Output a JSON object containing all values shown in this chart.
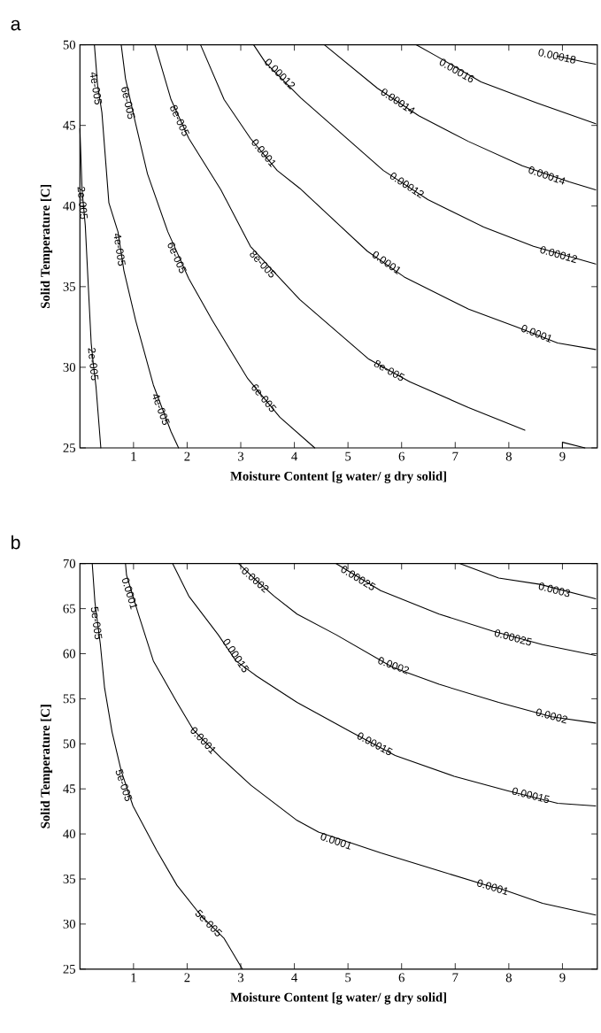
{
  "chart_data": [
    {
      "type": "line",
      "title": "a",
      "xlabel": "Moisture Content [g water/ g dry solid]",
      "ylabel": "Solid Temperature [C]",
      "xlim": [
        0,
        9.65
      ],
      "ylim": [
        25,
        50
      ],
      "xticks": [
        1,
        2,
        3,
        4,
        5,
        6,
        7,
        8,
        9
      ],
      "yticks": [
        25,
        30,
        35,
        40,
        45,
        50
      ],
      "marker": "none",
      "line_style": "solid",
      "series": [
        {
          "color": "#000000",
          "x": [
            0,
            0.04,
            0.1,
            0.16,
            0.21,
            0.25,
            0.3,
            0.39
          ],
          "values": [
            44.8,
            41.0,
            38.8,
            34.8,
            31.5,
            30.2,
            28.8,
            25
          ]
        },
        {
          "color": "#000000",
          "x": [
            0.27,
            0.33,
            0.41,
            0.54,
            0.71,
            0.82,
            1.04,
            1.37,
            1.7,
            1.84
          ],
          "values": [
            50,
            47.5,
            45.8,
            40.2,
            38.4,
            36.0,
            32.9,
            28.9,
            26.0,
            25
          ]
        },
        {
          "color": "#000000",
          "x": [
            0.77,
            0.85,
            1.04,
            1.26,
            1.64,
            2.03,
            2.47,
            3.13,
            3.73,
            4.38
          ],
          "values": [
            50,
            47.9,
            45.1,
            42.0,
            38.4,
            35.5,
            32.9,
            29.3,
            26.9,
            25
          ]
        },
        {
          "color": "#000000",
          "x": [
            1.4,
            1.7,
            2.03,
            2.63,
            3.18,
            3.68,
            4.1,
            5.39,
            6.15,
            7.25,
            8.3
          ],
          "values": [
            50,
            46.6,
            44.2,
            41.0,
            37.5,
            35.7,
            34.2,
            30.5,
            29.1,
            27.5,
            26.1
          ]
        },
        {
          "color": "#000000",
          "x": [
            2.25,
            2.69,
            3.18,
            3.68,
            4.1,
            5.36,
            6.05,
            7.25,
            8.14,
            8.91,
            9.62
          ],
          "values": [
            50,
            46.6,
            44.2,
            42.2,
            41.1,
            37.2,
            35.6,
            33.6,
            32.5,
            31.5,
            31.1
          ]
        },
        {
          "color": "#000000",
          "x": [
            3.24,
            3.46,
            4.12,
            5.66,
            6.49,
            7.53,
            8.46,
            9.62
          ],
          "values": [
            50,
            48.9,
            46.7,
            42.2,
            40.4,
            38.7,
            37.5,
            36.4
          ]
        },
        {
          "color": "#000000",
          "x": [
            4.56,
            5.55,
            6.32,
            7.25,
            8.25,
            9.13,
            9.62
          ],
          "values": [
            50,
            47.3,
            45.6,
            44.0,
            42.5,
            41.5,
            41.0
          ]
        },
        {
          "color": "#000000",
          "x": [
            6.27,
            6.65,
            7.48,
            8.52,
            9.62
          ],
          "values": [
            50,
            49.3,
            47.7,
            46.4,
            45.1
          ]
        },
        {
          "color": "#000000",
          "x": [
            8.9,
            9.38,
            9.62
          ],
          "values": [
            49.3,
            48.95,
            48.8
          ]
        },
        {
          "color": "#000000",
          "x": [
            9.0,
            9.0,
            9.42
          ],
          "values": [
            25,
            25.35,
            25
          ]
        }
      ],
      "annotations": [
        {
          "text": "2e-005",
          "x": 0.05,
          "y": 40.2
        },
        {
          "text": "2e-005",
          "x": 0.25,
          "y": 30.2
        },
        {
          "text": "4e-005",
          "x": 0.3,
          "y": 47.3
        },
        {
          "text": "4e-005",
          "x": 0.74,
          "y": 37.3
        },
        {
          "text": "4e-005",
          "x": 1.51,
          "y": 27.4
        },
        {
          "text": "6e-005",
          "x": 0.9,
          "y": 46.4
        },
        {
          "text": "6e-005",
          "x": 1.81,
          "y": 36.8
        },
        {
          "text": "6e-005",
          "x": 3.43,
          "y": 28.1
        },
        {
          "text": "8e-005",
          "x": 1.86,
          "y": 45.3
        },
        {
          "text": "8e-005",
          "x": 3.41,
          "y": 36.4
        },
        {
          "text": "8e-005",
          "x": 5.77,
          "y": 29.8
        },
        {
          "text": "0.0001",
          "x": 3.43,
          "y": 43.3
        },
        {
          "text": "0.0001",
          "x": 5.72,
          "y": 36.5
        },
        {
          "text": "0.0001",
          "x": 8.52,
          "y": 32.1
        },
        {
          "text": "0.00012",
          "x": 3.73,
          "y": 48.2
        },
        {
          "text": "0.00012",
          "x": 6.1,
          "y": 41.3
        },
        {
          "text": "0.00012",
          "x": 8.93,
          "y": 37.0
        },
        {
          "text": "0.00014",
          "x": 5.93,
          "y": 46.5
        },
        {
          "text": "0.00014",
          "x": 8.71,
          "y": 41.9
        },
        {
          "text": "0.00016",
          "x": 7.03,
          "y": 48.4
        },
        {
          "text": "0.00018",
          "x": 8.9,
          "y": 49.3
        }
      ]
    },
    {
      "type": "line",
      "title": "b",
      "xlabel": "Moisture Content [g water/ g dry solid]",
      "ylabel": "Solid Temperature [C]",
      "xlim": [
        0,
        9.65
      ],
      "ylim": [
        25,
        70
      ],
      "xticks": [
        1,
        2,
        3,
        4,
        5,
        6,
        7,
        8,
        9
      ],
      "yticks": [
        25,
        30,
        35,
        40,
        45,
        50,
        55,
        60,
        65,
        70
      ],
      "marker": "none",
      "line_style": "solid",
      "series": [
        {
          "color": "#000000",
          "x": [
            0.23,
            0.28,
            0.38,
            0.46,
            0.6,
            0.77,
            0.99,
            1.43,
            1.81,
            2.25,
            2.4,
            2.69,
            3.03
          ],
          "values": [
            70,
            65.7,
            61.1,
            56.2,
            51.3,
            47.0,
            43.1,
            38.2,
            34.3,
            31.0,
            30.1,
            28.4,
            25
          ]
        },
        {
          "color": "#000000",
          "x": [
            0.85,
            0.87,
            1.09,
            1.37,
            1.81,
            2.11,
            2.3,
            2.64,
            3.19,
            4.05,
            4.45,
            5.61,
            6.7,
            7.7,
            7.81,
            8.63,
            9.62
          ],
          "values": [
            70,
            68.7,
            64.4,
            59.2,
            54.6,
            51.6,
            50.4,
            48.4,
            45.4,
            41.5,
            40.2,
            37.9,
            35.9,
            34.1,
            34.0,
            32.3,
            31.0
          ]
        },
        {
          "color": "#000000",
          "x": [
            1.73,
            2.03,
            2.58,
            2.91,
            3.3,
            4.05,
            5.06,
            5.88,
            6.98,
            7.97,
            8.91,
            9.62
          ],
          "values": [
            70,
            66.4,
            62.1,
            59.2,
            57.5,
            54.6,
            51.3,
            48.7,
            46.4,
            44.8,
            43.4,
            43.1
          ]
        },
        {
          "color": "#000000",
          "x": [
            2.96,
            3.24,
            3.62,
            4.05,
            4.78,
            5.83,
            6.7,
            7.81,
            8.8,
            9.62
          ],
          "values": [
            70,
            68.4,
            66.4,
            64.4,
            62.1,
            58.5,
            56.6,
            54.6,
            53.0,
            52.3
          ]
        },
        {
          "color": "#000000",
          "x": [
            4.78,
            5.61,
            6.7,
            7.7,
            8.63,
            9.62
          ],
          "values": [
            70,
            67.0,
            64.4,
            62.5,
            61.0,
            59.8
          ]
        },
        {
          "color": "#000000",
          "x": [
            7.09,
            7.81,
            8.58,
            9.62
          ],
          "values": [
            70,
            68.4,
            67.7,
            66.1
          ]
        }
      ],
      "annotations": [
        {
          "text": "5e-005",
          "x": 0.31,
          "y": 63.4
        },
        {
          "text": "5e-005",
          "x": 0.82,
          "y": 45.4
        },
        {
          "text": "5e-005",
          "x": 2.4,
          "y": 30.1
        },
        {
          "text": "0.0001",
          "x": 0.93,
          "y": 66.7
        },
        {
          "text": "0.0001",
          "x": 2.3,
          "y": 50.4
        },
        {
          "text": "0.0001",
          "x": 4.78,
          "y": 39.2
        },
        {
          "text": "0.0001",
          "x": 7.7,
          "y": 34.1
        },
        {
          "text": "0.00015",
          "x": 2.91,
          "y": 59.8
        },
        {
          "text": "0.00015",
          "x": 5.5,
          "y": 50.0
        },
        {
          "text": "0.00015",
          "x": 8.41,
          "y": 44.3
        },
        {
          "text": "0.0002",
          "x": 3.27,
          "y": 68.2
        },
        {
          "text": "0.0002",
          "x": 5.85,
          "y": 58.7
        },
        {
          "text": "0.0002",
          "x": 8.8,
          "y": 53.1
        },
        {
          "text": "0.00025",
          "x": 5.19,
          "y": 68.4
        },
        {
          "text": "0.00025",
          "x": 8.08,
          "y": 61.8
        },
        {
          "text": "0.0003",
          "x": 8.85,
          "y": 67.1
        }
      ]
    }
  ]
}
